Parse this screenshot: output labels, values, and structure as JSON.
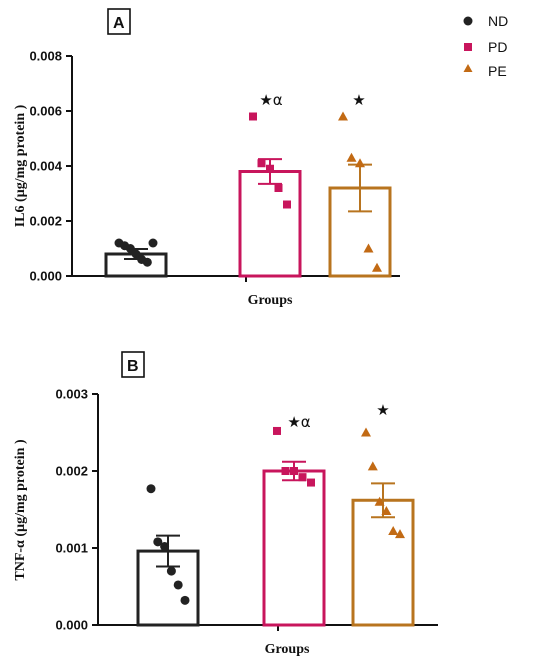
{
  "colors": {
    "ND": "#222222",
    "PD": "#c8155c",
    "PE": "#c26a14",
    "PE_bar": "#b8741f"
  },
  "legend": [
    {
      "label": "ND",
      "marker": "circle"
    },
    {
      "label": "PD",
      "marker": "square"
    },
    {
      "label": "PE",
      "marker": "triangle"
    }
  ],
  "chart_data": [
    {
      "panel": "A",
      "type": "bar",
      "xlabel": "Groups",
      "ylabel": "IL6 (µg/mg protein )",
      "ylim": [
        0,
        0.008
      ],
      "yticks": [
        "0.000",
        "0.002",
        "0.004",
        "0.006",
        "0.008"
      ],
      "categories": [
        "ND",
        "PD",
        "PE"
      ],
      "values": [
        0.0008,
        0.0038,
        0.0032
      ],
      "error": [
        0.00018,
        0.00045,
        0.00085
      ],
      "points": [
        [
          0.0012,
          0.0011,
          0.001,
          0.0008,
          0.0006,
          0.0005,
          0.0012
        ],
        [
          0.0058,
          0.0041,
          0.0039,
          0.0032,
          0.0026
        ],
        [
          0.0058,
          0.0043,
          0.0041,
          0.001,
          0.0003
        ]
      ],
      "annotations": [
        "★α",
        "★"
      ]
    },
    {
      "panel": "B",
      "type": "bar",
      "xlabel": "Groups",
      "ylabel": "TNF-α (µg/mg protein )",
      "ylim": [
        0,
        0.003
      ],
      "yticks": [
        "0.000",
        "0.001",
        "0.002",
        "0.003"
      ],
      "categories": [
        "ND",
        "PD",
        "PE"
      ],
      "values": [
        0.00096,
        0.002,
        0.00162
      ],
      "error": [
        0.0002,
        0.00012,
        0.00022
      ],
      "points": [
        [
          0.00177,
          0.00108,
          0.00102,
          0.0007,
          0.00052,
          0.00032
        ],
        [
          0.00252,
          0.002,
          0.002,
          0.00192,
          0.00185
        ],
        [
          0.0025,
          0.00206,
          0.0016,
          0.00148,
          0.00122,
          0.00118
        ]
      ],
      "annotations": [
        "★α",
        "★"
      ]
    }
  ]
}
